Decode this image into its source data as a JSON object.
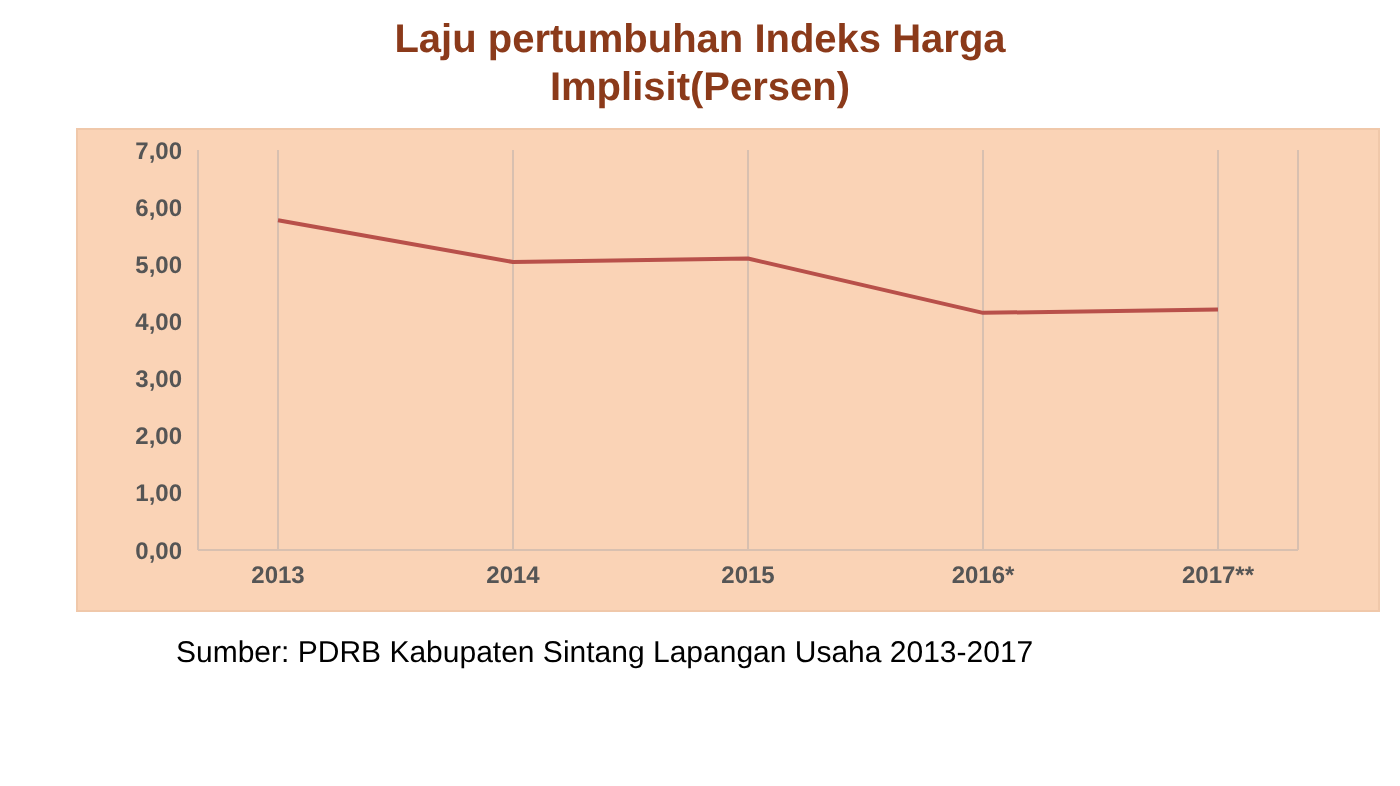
{
  "chart_data": {
    "type": "line",
    "title": "Laju pertumbuhan Indeks Harga Implisit(Persen)",
    "categories": [
      "2013",
      "2014",
      "2015",
      "2016*",
      "2017**"
    ],
    "series": [
      {
        "color": "#b8504a",
        "values": [
          5.77,
          5.04,
          5.1,
          4.15,
          4.21
        ]
      }
    ],
    "ylim": [
      0,
      7
    ],
    "yticks": [
      {
        "value": 0,
        "label": "0,00"
      },
      {
        "value": 1,
        "label": "1,00"
      },
      {
        "value": 2,
        "label": "2,00"
      },
      {
        "value": 3,
        "label": "3,00"
      },
      {
        "value": 4,
        "label": "4,00"
      },
      {
        "value": 5,
        "label": "5,00"
      },
      {
        "value": 6,
        "label": "6,00"
      },
      {
        "value": 7,
        "label": "7,00"
      }
    ],
    "grid": "x",
    "marker": "none",
    "annotations": [
      "Sumber: PDRB Kabupaten Sintang Lapangan Usaha 2013-2017"
    ]
  }
}
